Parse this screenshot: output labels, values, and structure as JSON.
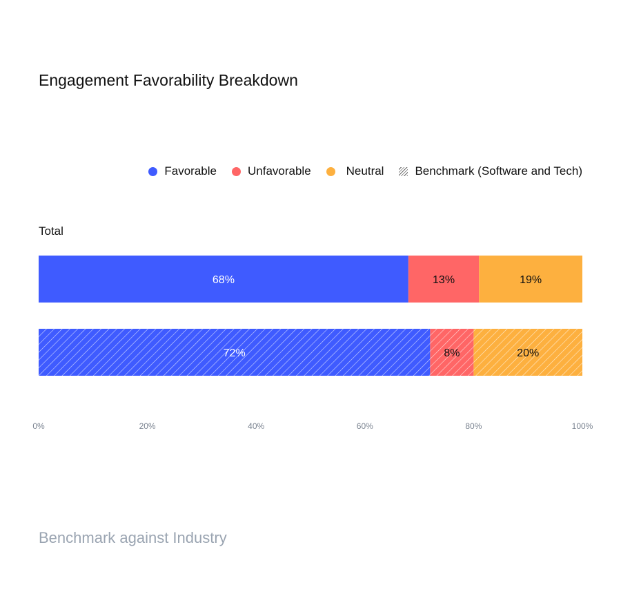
{
  "chart_data": {
    "type": "bar",
    "orientation": "horizontal",
    "stacked": true,
    "title": "Engagement Favorability Breakdown",
    "group_label": "Total",
    "legend": [
      "Favorable",
      "Unfavorable",
      "Neutral",
      "Benchmark (Software and Tech)"
    ],
    "legend_position": "top-right",
    "colors": {
      "Favorable": "#3f5bff",
      "Unfavorable": "#ff6666",
      "Neutral": "#fdb03f"
    },
    "rows": [
      {
        "benchmark": false,
        "values": [
          68,
          13,
          19
        ],
        "labels": [
          "68%",
          "13%",
          "19%"
        ]
      },
      {
        "benchmark": true,
        "values": [
          72,
          8,
          20
        ],
        "labels": [
          "72%",
          "8%",
          "20%"
        ]
      }
    ],
    "xlim": [
      0,
      100
    ],
    "xticks": [
      "0%",
      "20%",
      "40%",
      "60%",
      "80%",
      "100%"
    ],
    "grid": false
  },
  "footer": "Benchmark against Industry"
}
